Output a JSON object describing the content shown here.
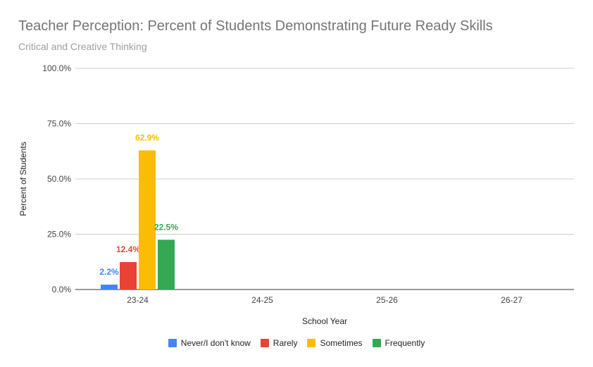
{
  "chart_data": {
    "type": "bar",
    "title": "Teacher Perception: Percent of Students Demonstrating Future Ready Skills",
    "subtitle": "Critical and Creative Thinking",
    "xlabel": "School Year",
    "ylabel": "Percent of Students",
    "categories": [
      "23-24",
      "24-25",
      "25-26",
      "26-27"
    ],
    "ylim": [
      0,
      100
    ],
    "yticks": [
      0,
      25,
      50,
      75,
      100
    ],
    "ytick_labels": [
      "0.0%",
      "25.0%",
      "50.0%",
      "75.0%",
      "100.0%"
    ],
    "grid": true,
    "legend_position": "bottom",
    "series": [
      {
        "name": "Never/I don't know",
        "color": "#4285F4",
        "values": [
          2.2,
          null,
          null,
          null
        ],
        "labels": [
          "2.2%",
          "",
          "",
          ""
        ]
      },
      {
        "name": "Rarely",
        "color": "#EA4335",
        "values": [
          12.4,
          null,
          null,
          null
        ],
        "labels": [
          "12.4%",
          "",
          "",
          ""
        ]
      },
      {
        "name": "Sometimes",
        "color": "#FBBC04",
        "values": [
          62.9,
          null,
          null,
          null
        ],
        "labels": [
          "62.9%",
          "",
          "",
          ""
        ]
      },
      {
        "name": "Frequently",
        "color": "#34A853",
        "values": [
          22.5,
          null,
          null,
          null
        ],
        "labels": [
          "22.5%",
          "",
          "",
          ""
        ]
      }
    ]
  }
}
